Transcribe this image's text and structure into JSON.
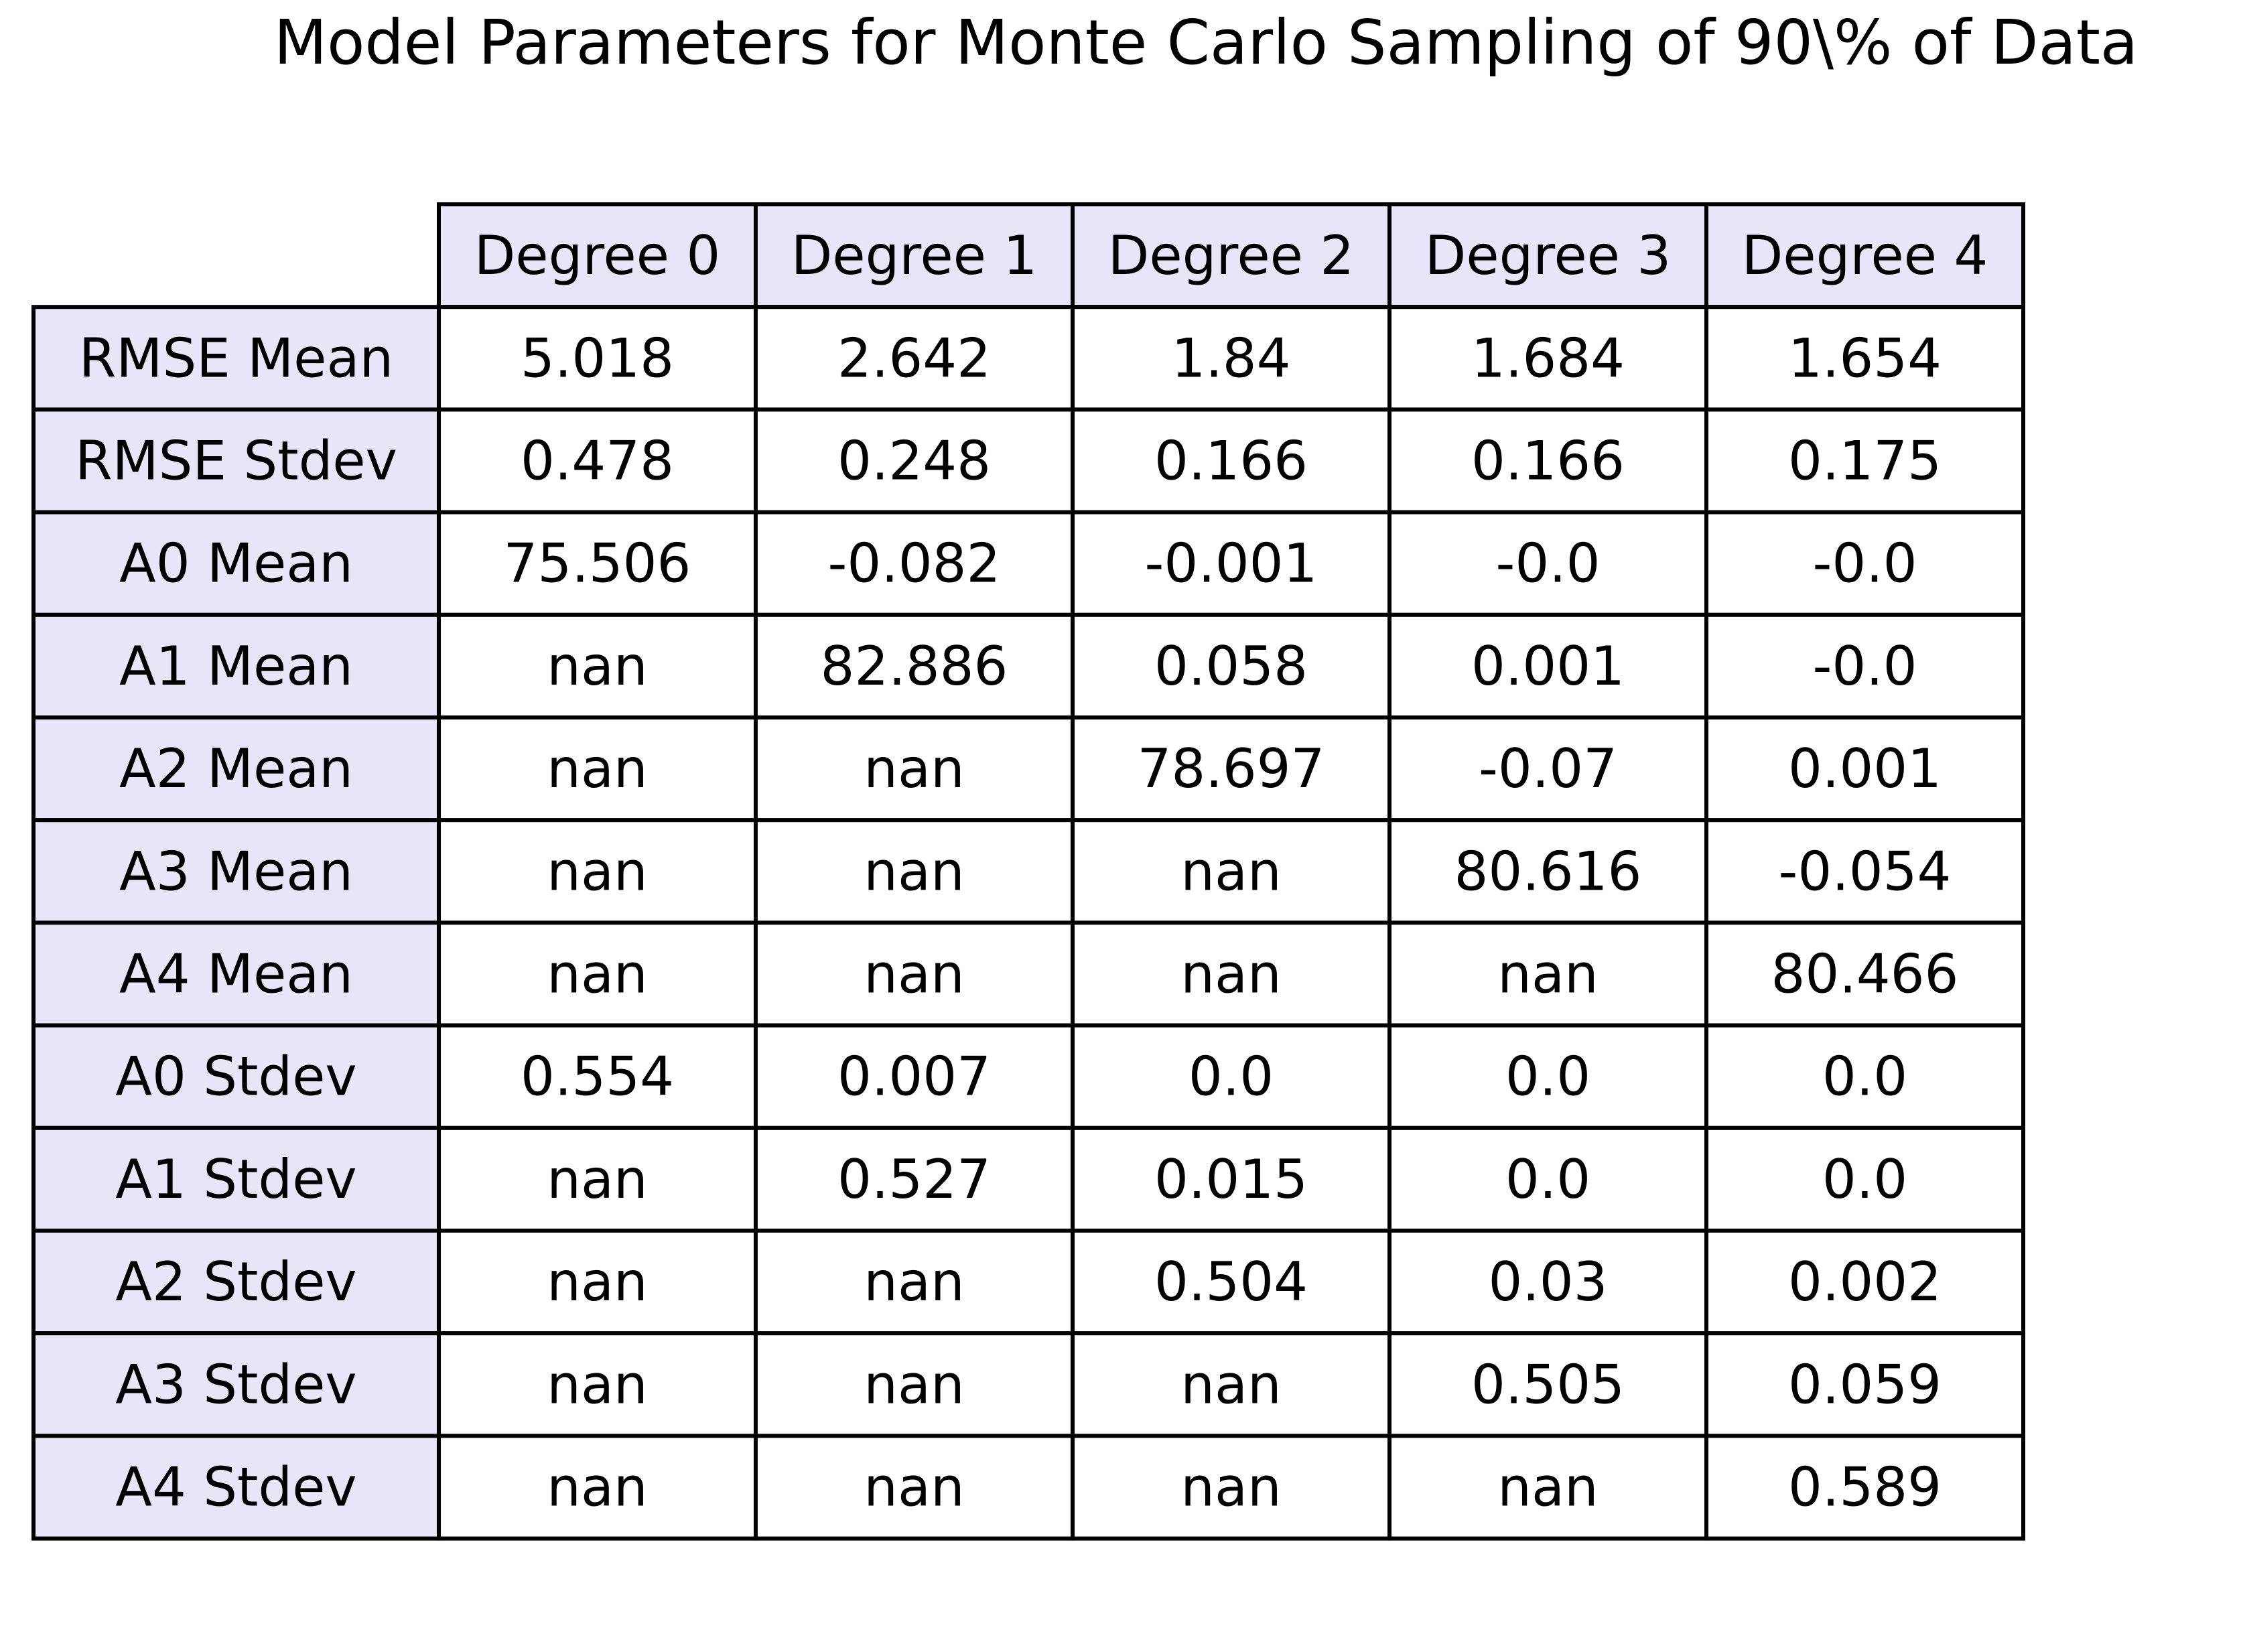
{
  "chart_data": {
    "type": "table",
    "title": "Model Parameters for Monte Carlo Sampling of 90\\% of Data",
    "columns": [
      "Degree 0",
      "Degree 1",
      "Degree 2",
      "Degree 3",
      "Degree 4"
    ],
    "rows": [
      {
        "label": "RMSE Mean",
        "values": [
          "5.018",
          "2.642",
          "1.84",
          "1.684",
          "1.654"
        ]
      },
      {
        "label": "RMSE Stdev",
        "values": [
          "0.478",
          "0.248",
          "0.166",
          "0.166",
          "0.175"
        ]
      },
      {
        "label": "A0 Mean",
        "values": [
          "75.506",
          "-0.082",
          "-0.001",
          "-0.0",
          "-0.0"
        ]
      },
      {
        "label": "A1 Mean",
        "values": [
          "nan",
          "82.886",
          "0.058",
          "0.001",
          "-0.0"
        ]
      },
      {
        "label": "A2 Mean",
        "values": [
          "nan",
          "nan",
          "78.697",
          "-0.07",
          "0.001"
        ]
      },
      {
        "label": "A3 Mean",
        "values": [
          "nan",
          "nan",
          "nan",
          "80.616",
          "-0.054"
        ]
      },
      {
        "label": "A4 Mean",
        "values": [
          "nan",
          "nan",
          "nan",
          "nan",
          "80.466"
        ]
      },
      {
        "label": "A0 Stdev",
        "values": [
          "0.554",
          "0.007",
          "0.0",
          "0.0",
          "0.0"
        ]
      },
      {
        "label": "A1 Stdev",
        "values": [
          "nan",
          "0.527",
          "0.015",
          "0.0",
          "0.0"
        ]
      },
      {
        "label": "A2 Stdev",
        "values": [
          "nan",
          "nan",
          "0.504",
          "0.03",
          "0.002"
        ]
      },
      {
        "label": "A3 Stdev",
        "values": [
          "nan",
          "nan",
          "nan",
          "0.505",
          "0.059"
        ]
      },
      {
        "label": "A4 Stdev",
        "values": [
          "nan",
          "nan",
          "nan",
          "nan",
          "0.589"
        ]
      }
    ],
    "colors": {
      "header_fill": "#e6e6f8",
      "cell_fill": "#ffffff",
      "border": "#000000",
      "text": "#000000"
    }
  }
}
